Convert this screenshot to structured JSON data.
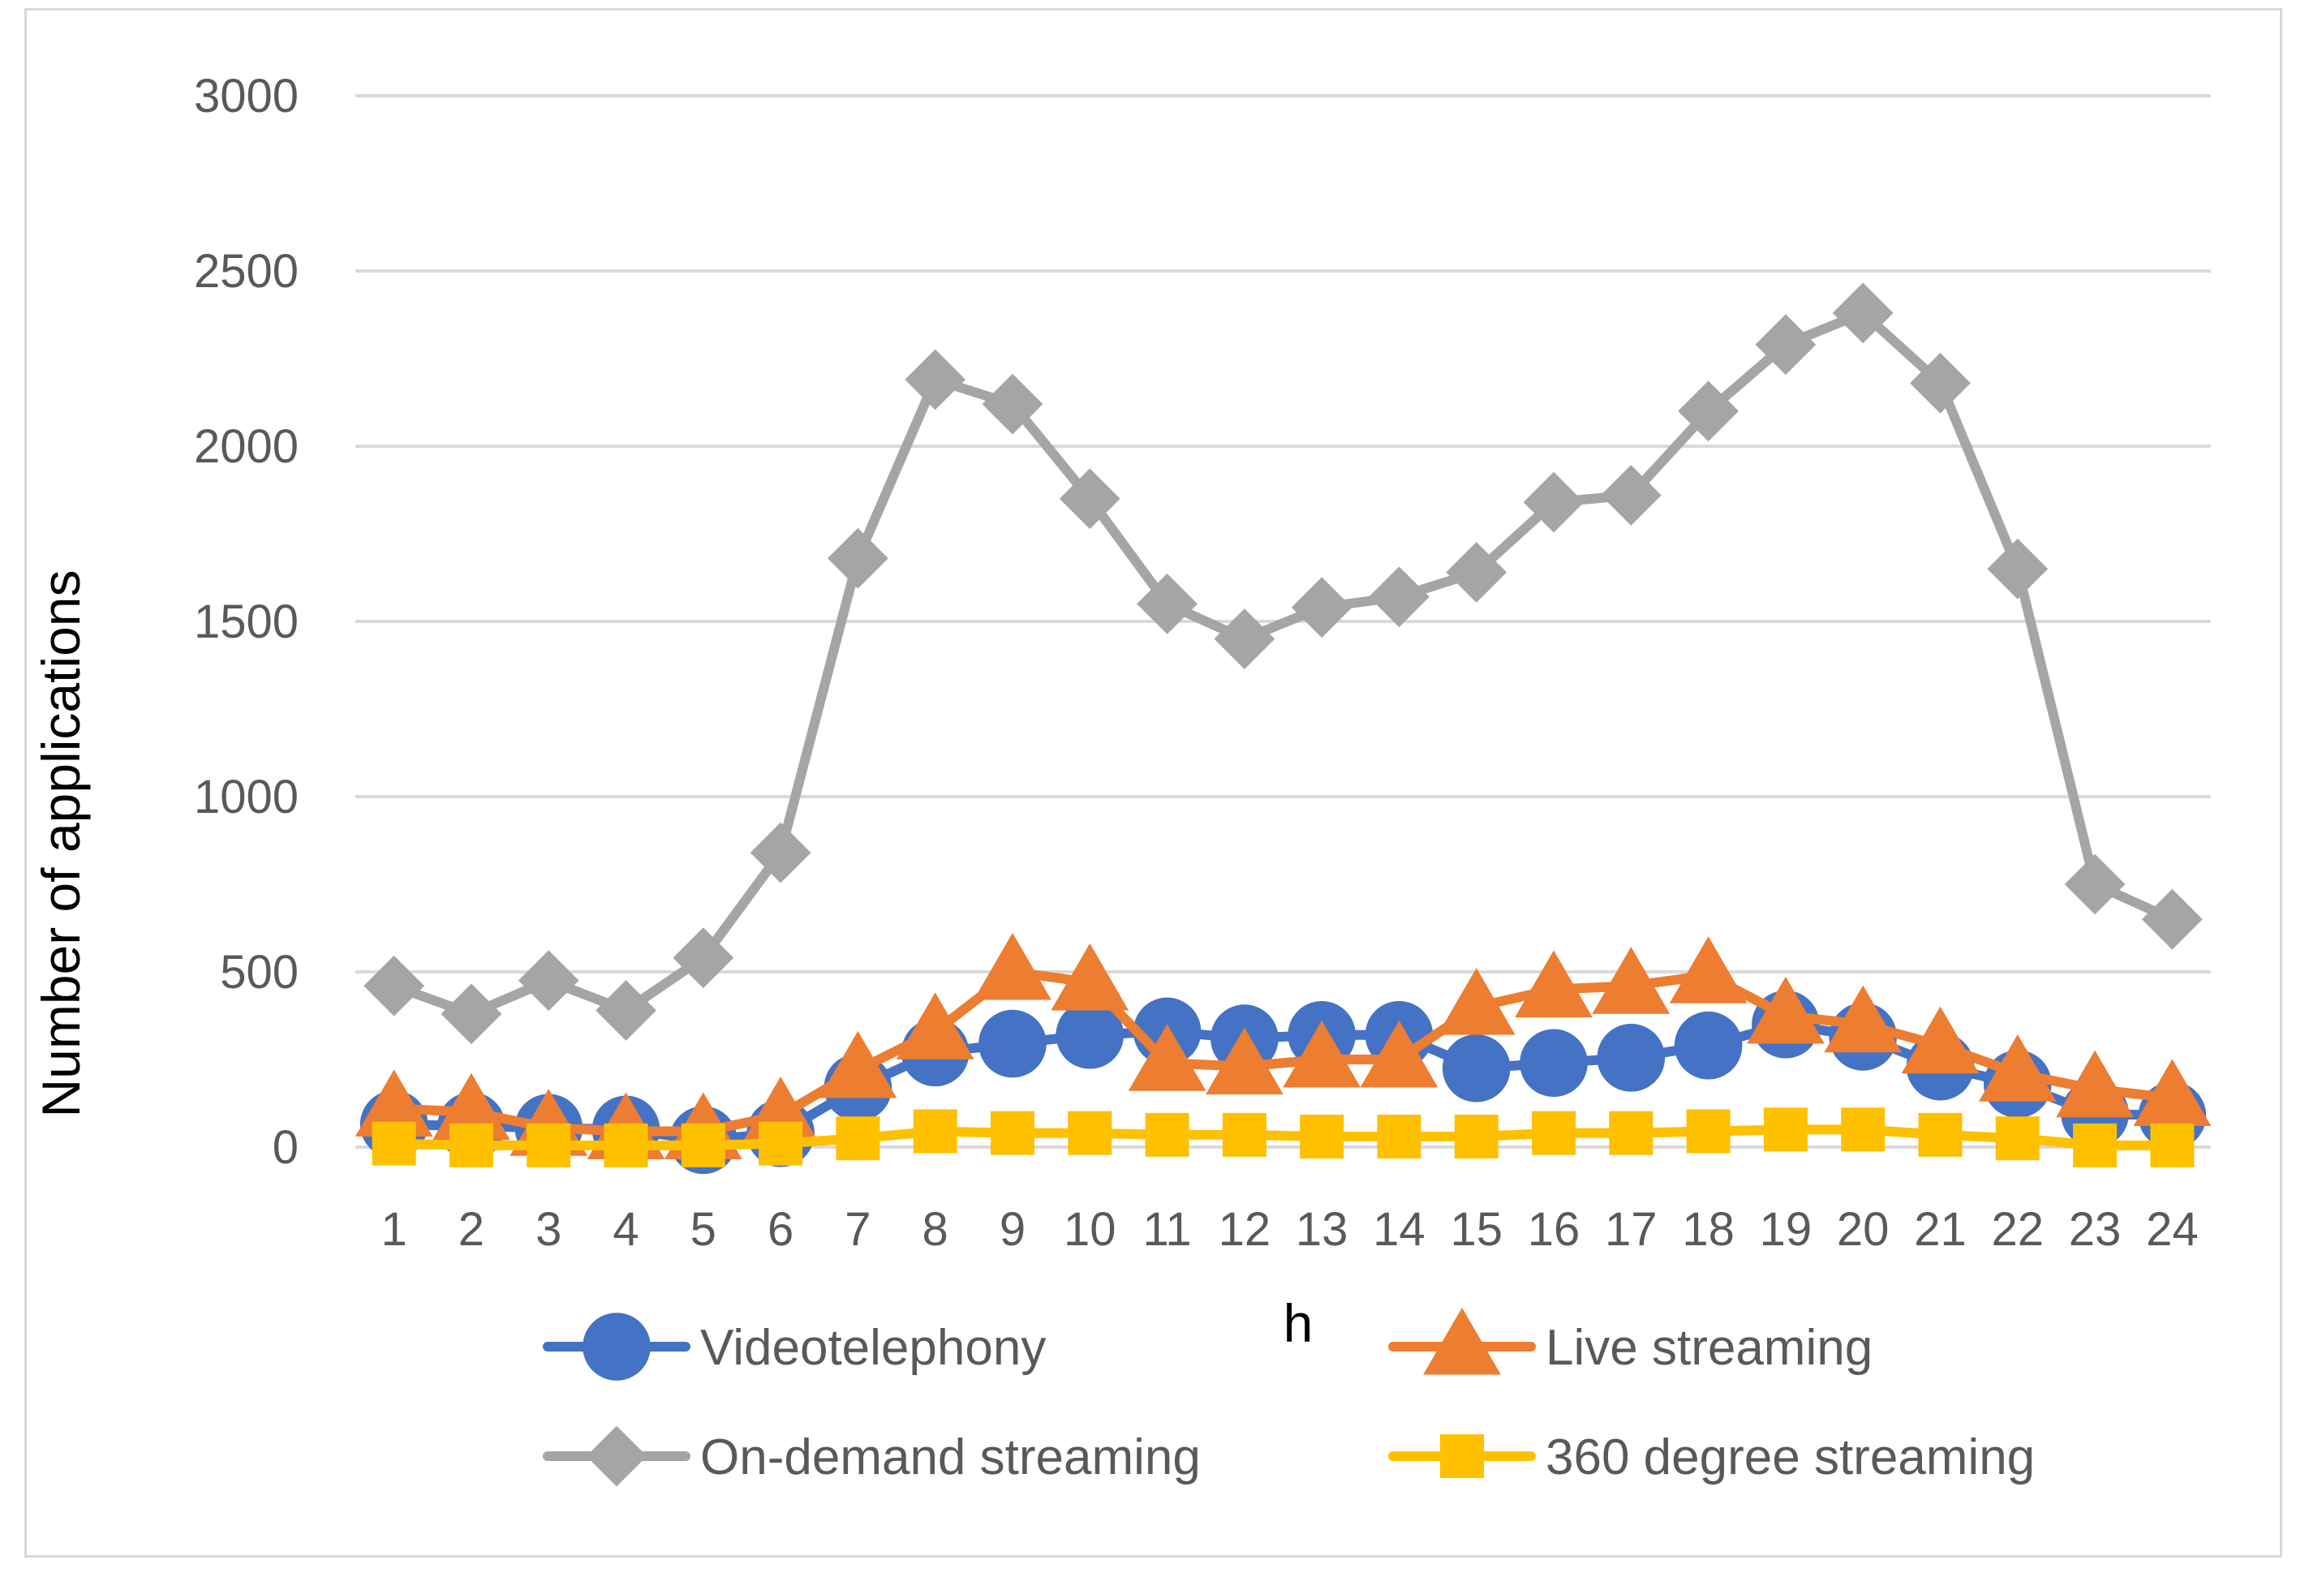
{
  "chart_data": {
    "type": "line",
    "title": "",
    "xlabel": "h",
    "ylabel": "Number of applications",
    "ylim": [
      0,
      3000
    ],
    "yticks": [
      "0",
      "500",
      "1000",
      "1500",
      "2000",
      "2500",
      "3000"
    ],
    "grid": true,
    "legend_position": "bottom",
    "categories": [
      "1",
      "2",
      "3",
      "4",
      "5",
      "6",
      "7",
      "8",
      "9",
      "10",
      "11",
      "12",
      "13",
      "14",
      "15",
      "16",
      "17",
      "18",
      "19",
      "20",
      "21",
      "22",
      "23",
      "24"
    ],
    "series": [
      {
        "name": "Videotelephony",
        "color": "#4472c4",
        "marker": "circle",
        "values": [
          65,
          60,
          55,
          50,
          20,
          40,
          170,
          270,
          295,
          320,
          330,
          310,
          320,
          320,
          225,
          240,
          255,
          290,
          350,
          315,
          230,
          180,
          95,
          90
        ]
      },
      {
        "name": "Live streaming",
        "color": "#ed7d31",
        "marker": "triangle",
        "values": [
          110,
          100,
          55,
          45,
          45,
          90,
          220,
          330,
          500,
          470,
          240,
          230,
          250,
          250,
          400,
          450,
          460,
          490,
          375,
          350,
          290,
          210,
          165,
          140
        ]
      },
      {
        "name": "On-demand streaming",
        "color": "#a5a5a5",
        "marker": "diamond",
        "values": [
          460,
          380,
          475,
          390,
          540,
          840,
          1680,
          2190,
          2120,
          1850,
          1550,
          1450,
          1540,
          1570,
          1640,
          1840,
          1860,
          2100,
          2290,
          2380,
          2180,
          1650,
          750,
          650
        ]
      },
      {
        "name": "360 degree streaming",
        "color": "#ffc000",
        "marker": "square",
        "values": [
          10,
          5,
          5,
          5,
          5,
          10,
          25,
          45,
          40,
          40,
          35,
          35,
          30,
          30,
          30,
          40,
          40,
          45,
          50,
          50,
          35,
          25,
          5,
          5
        ]
      }
    ]
  }
}
